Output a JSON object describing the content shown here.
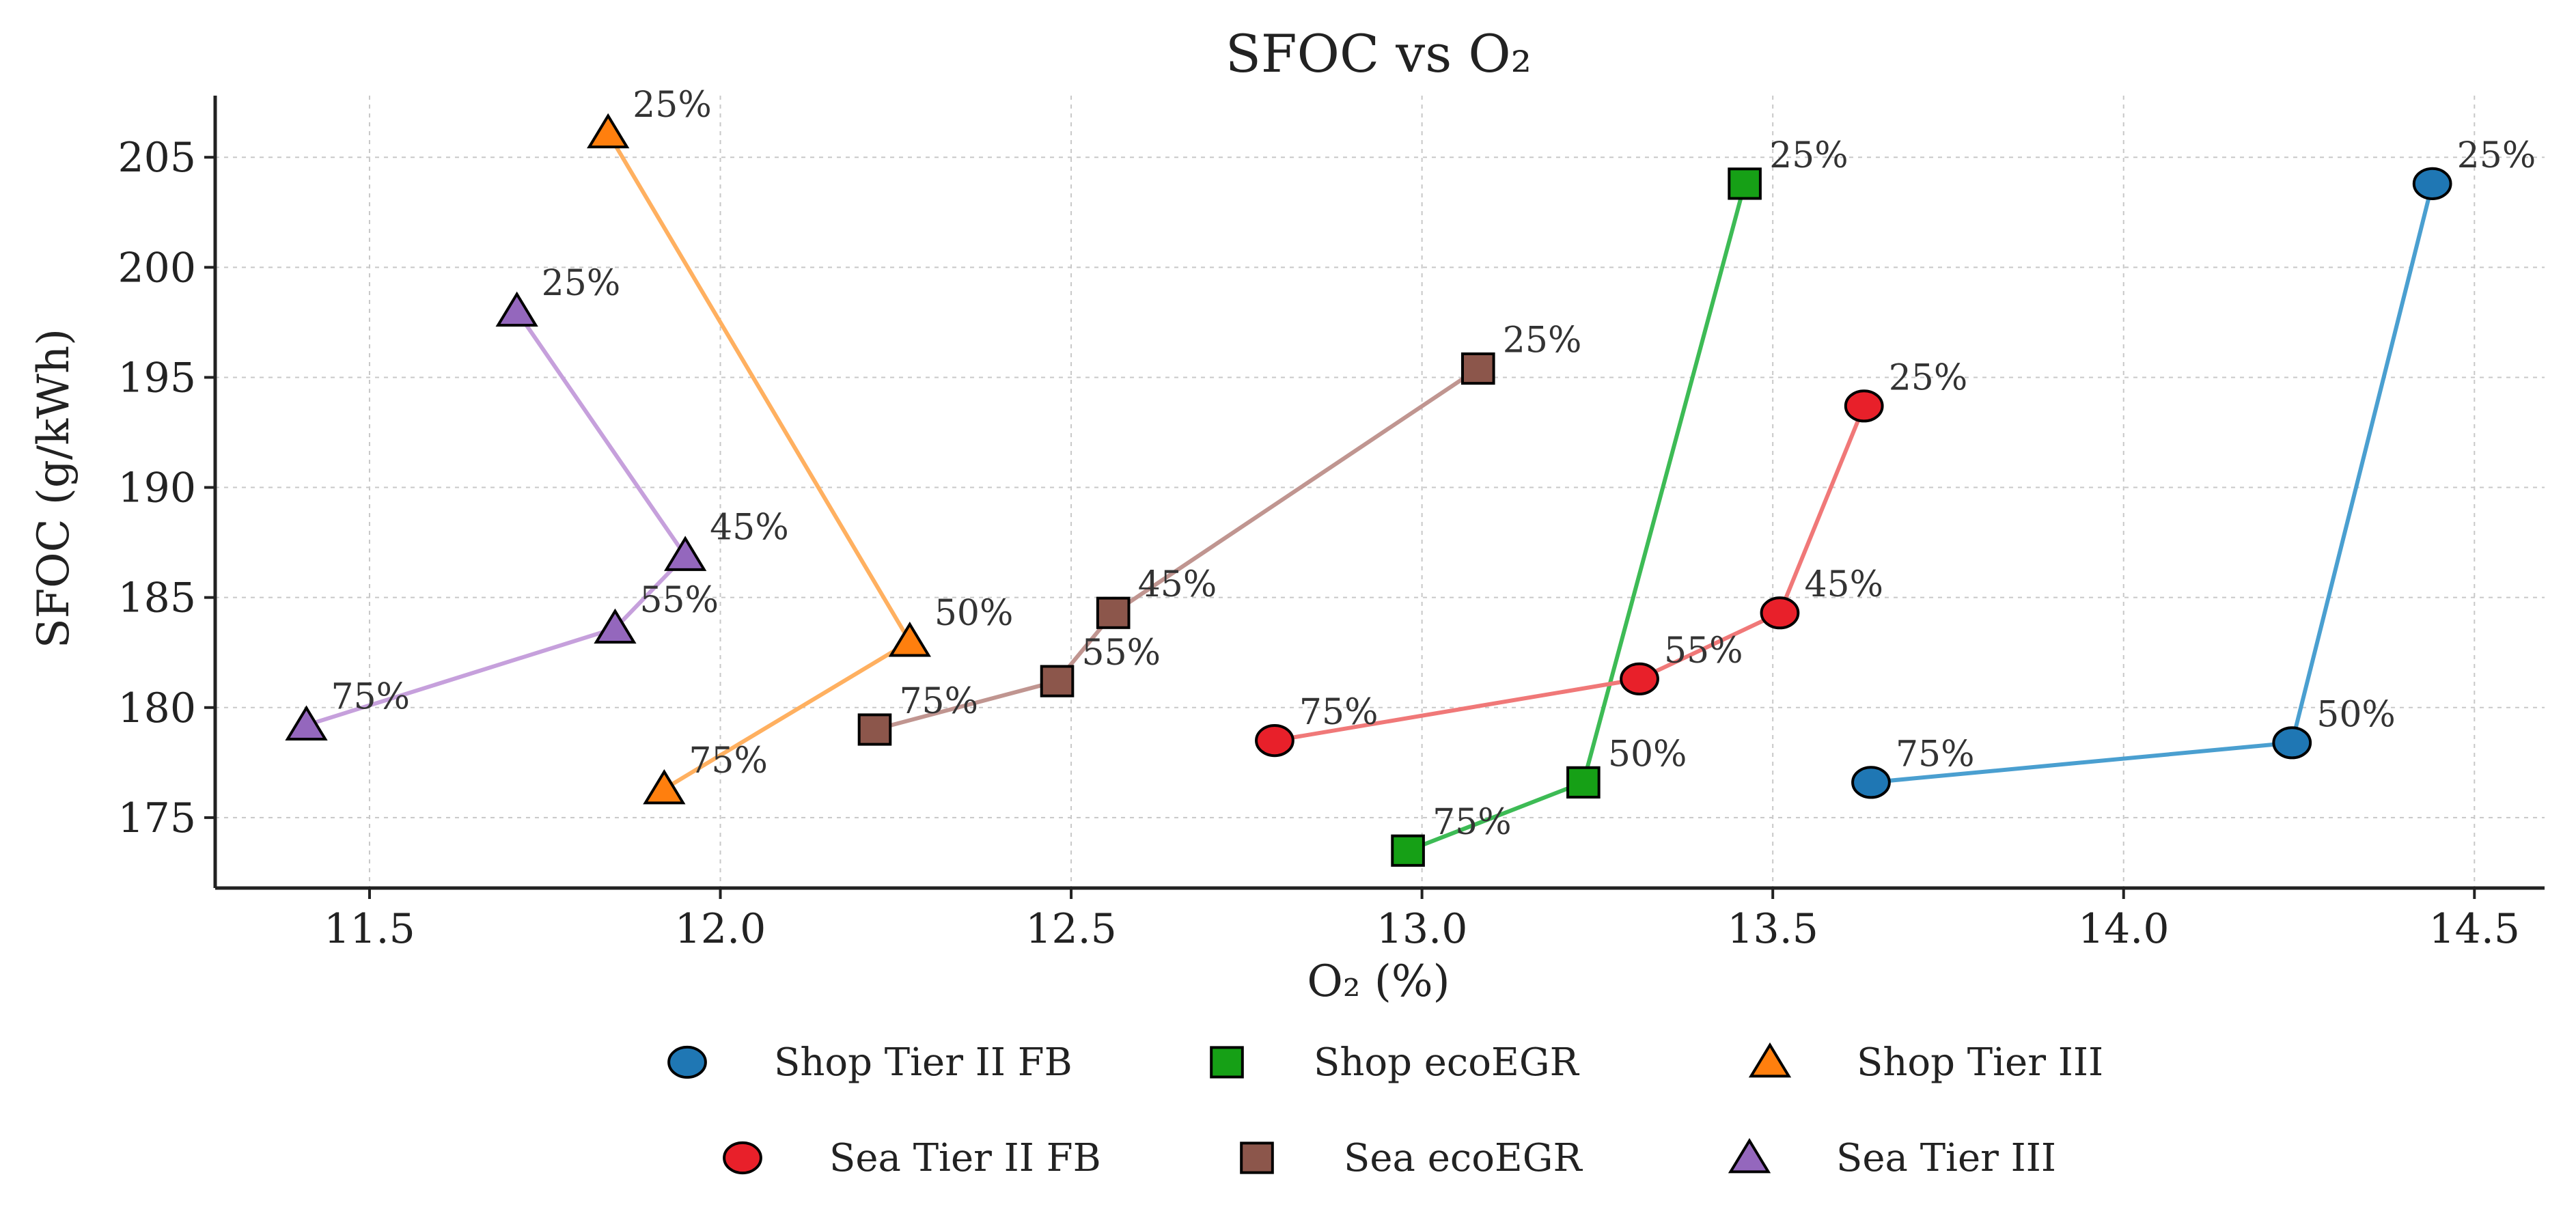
{
  "chart_data": {
    "type": "scatter",
    "title": "SFOC vs O₂",
    "xlabel": "O₂ (%)",
    "ylabel": "SFOC (g/kWh)",
    "xlim": [
      11.28,
      14.6
    ],
    "ylim": [
      171.8,
      207.8
    ],
    "xticks": [
      11.5,
      12.0,
      12.5,
      13.0,
      13.5,
      14.0,
      14.5
    ],
    "xtick_labels": [
      "11.5",
      "12.0",
      "12.5",
      "13.0",
      "13.5",
      "14.0",
      "14.5"
    ],
    "yticks": [
      175,
      180,
      185,
      190,
      195,
      200,
      205
    ],
    "ytick_labels": [
      "175",
      "180",
      "185",
      "190",
      "195",
      "200",
      "205"
    ],
    "grid": true,
    "legend_position": "bottom",
    "series": [
      {
        "name": "Shop Tier II FB",
        "marker": "circle",
        "marker_color": "#1f77b4",
        "line_color": "#4a9fd0",
        "points": [
          {
            "x": 14.44,
            "y": 203.8,
            "label": "25%"
          },
          {
            "x": 14.24,
            "y": 178.4,
            "label": "50%"
          },
          {
            "x": 13.64,
            "y": 176.6,
            "label": "75%"
          }
        ]
      },
      {
        "name": "Shop ecoEGR",
        "marker": "square",
        "marker_color": "#16a016",
        "line_color": "#3dbb55",
        "points": [
          {
            "x": 13.46,
            "y": 203.8,
            "label": "25%"
          },
          {
            "x": 13.23,
            "y": 176.6,
            "label": "50%"
          },
          {
            "x": 12.98,
            "y": 173.5,
            "label": "75%"
          }
        ]
      },
      {
        "name": "Shop Tier III",
        "marker": "triangle",
        "marker_color": "#ff7f0e",
        "line_color": "#ffb060",
        "points": [
          {
            "x": 11.84,
            "y": 206.1,
            "label": "25%"
          },
          {
            "x": 12.27,
            "y": 183.0,
            "label": "50%"
          },
          {
            "x": 11.92,
            "y": 176.3,
            "label": "75%"
          }
        ]
      },
      {
        "name": "Sea Tier II FB",
        "marker": "circle",
        "marker_color": "#e8202a",
        "line_color": "#f07878",
        "points": [
          {
            "x": 13.63,
            "y": 193.7,
            "label": "25%"
          },
          {
            "x": 13.51,
            "y": 184.3,
            "label": "45%"
          },
          {
            "x": 13.31,
            "y": 181.3,
            "label": "55%"
          },
          {
            "x": 12.79,
            "y": 178.5,
            "label": "75%"
          }
        ]
      },
      {
        "name": "Sea ecoEGR",
        "marker": "square",
        "marker_color": "#8c564b",
        "line_color": "#c09590",
        "points": [
          {
            "x": 13.08,
            "y": 195.4,
            "label": "25%"
          },
          {
            "x": 12.56,
            "y": 184.3,
            "label": "45%"
          },
          {
            "x": 12.48,
            "y": 181.2,
            "label": "55%"
          },
          {
            "x": 12.22,
            "y": 179.0,
            "label": "75%"
          }
        ]
      },
      {
        "name": "Sea Tier III",
        "marker": "triangle",
        "marker_color": "#9467bd",
        "line_color": "#c6a0dc",
        "points": [
          {
            "x": 11.71,
            "y": 198.0,
            "label": "25%"
          },
          {
            "x": 11.95,
            "y": 186.9,
            "label": "45%"
          },
          {
            "x": 11.85,
            "y": 183.6,
            "label": "55%"
          },
          {
            "x": 11.41,
            "y": 179.2,
            "label": "75%"
          }
        ]
      }
    ]
  }
}
